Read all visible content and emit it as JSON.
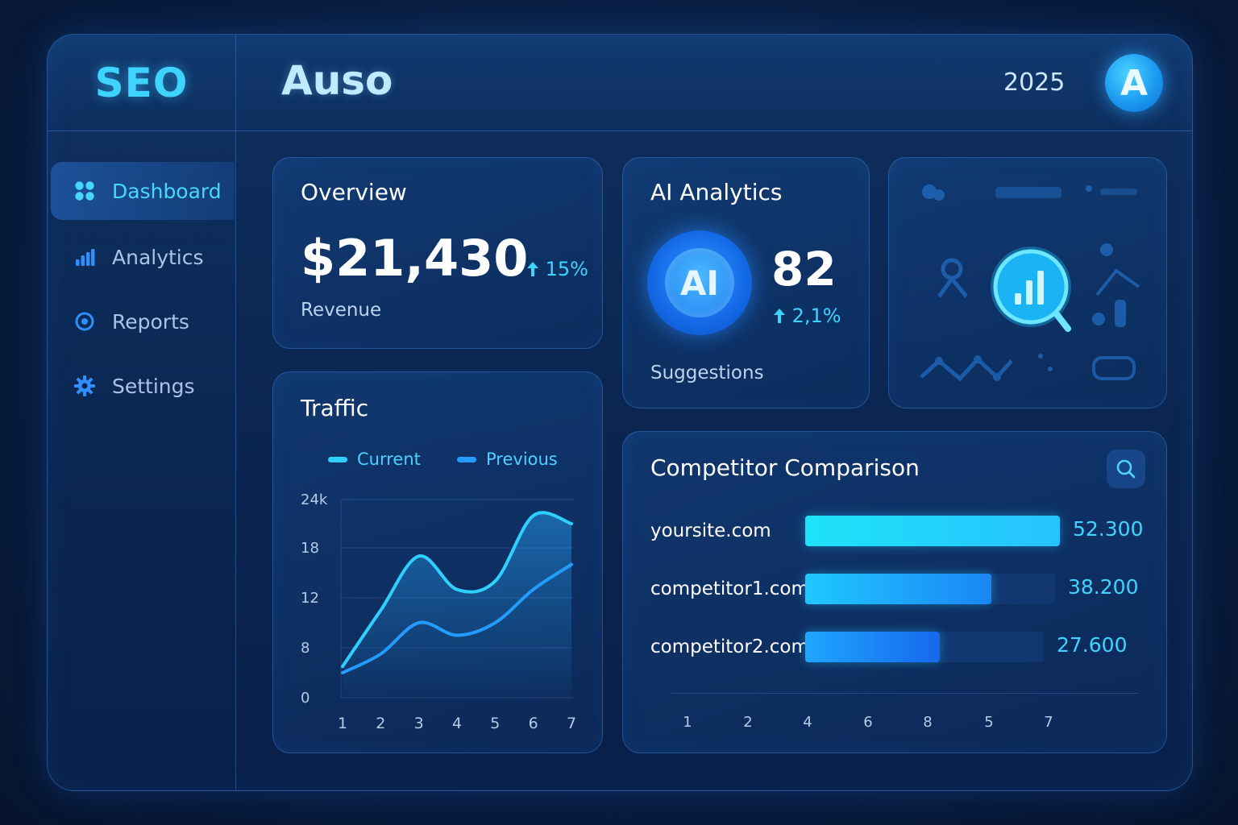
{
  "header": {
    "brand": "SEO",
    "title": "Auso",
    "year": "2025",
    "avatar_letter": "A"
  },
  "sidebar": {
    "items": [
      {
        "label": "Dashboard",
        "icon": "grid-icon",
        "active": true
      },
      {
        "label": "Analytics",
        "icon": "bar-chart-icon",
        "active": false
      },
      {
        "label": "Reports",
        "icon": "target-icon",
        "active": false
      },
      {
        "label": "Settings",
        "icon": "gear-icon",
        "active": false
      }
    ]
  },
  "overview": {
    "title": "Overview",
    "value": "$21,430",
    "delta": "15%",
    "label": "Revenue"
  },
  "ai_analytics": {
    "title": "AI Analytics",
    "badge": "AI",
    "value": "82",
    "delta": "2,1%",
    "label": "Suggestions"
  },
  "colors": {
    "accent": "#3fd4ff",
    "background": "#081c3d",
    "card": "#0e3064",
    "bar_primary": "#1ee3f7",
    "bar_secondary": "#1a7cf0"
  },
  "chart_data": [
    {
      "type": "line",
      "title": "Traffic",
      "x": [
        1,
        2,
        3,
        4,
        5,
        6,
        7
      ],
      "yticks": [
        "0",
        "8",
        "12",
        "18",
        "24k"
      ],
      "ylim": [
        0,
        24
      ],
      "grid": true,
      "legend_position": "top",
      "series": [
        {
          "name": "Current",
          "values": [
            5,
            11,
            17,
            13,
            14,
            22,
            21
          ],
          "color": "#2fd0ff"
        },
        {
          "name": "Previous",
          "values": [
            4,
            7,
            10,
            9,
            10,
            13,
            16
          ],
          "color": "#249bff"
        }
      ]
    },
    {
      "type": "bar",
      "title": "Competitor Comparison",
      "orientation": "horizontal",
      "categories": [
        "yoursite.com",
        "competitor1.com",
        "competitor2.com"
      ],
      "values": [
        52300,
        38200,
        27600
      ],
      "value_labels": [
        "52.300",
        "38.200",
        "27.600"
      ],
      "xticks": [
        "1",
        "2",
        "4",
        "6",
        "8",
        "5",
        "7"
      ]
    }
  ]
}
